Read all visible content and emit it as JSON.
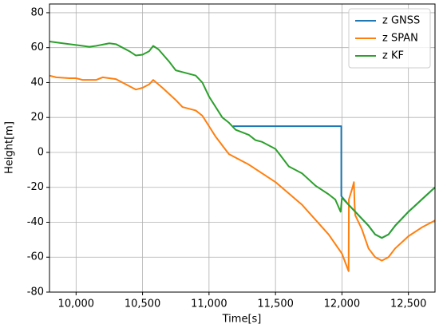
{
  "chart_data": {
    "type": "line",
    "x_label": "Time[s]",
    "y_label": "Height[m]",
    "xlim": [
      9800,
      12700
    ],
    "ylim": [
      -80,
      85
    ],
    "xticks": [
      {
        "value": 10000,
        "label": "10,000"
      },
      {
        "value": 10500,
        "label": "10,500"
      },
      {
        "value": 11000,
        "label": "11,000"
      },
      {
        "value": 11500,
        "label": "11,500"
      },
      {
        "value": 12000,
        "label": "12,000"
      },
      {
        "value": 12500,
        "label": "12,500"
      }
    ],
    "yticks": [
      -80,
      -60,
      -40,
      -20,
      0,
      20,
      40,
      60,
      80
    ],
    "grid": true,
    "legend": "upper right",
    "series": [
      {
        "name": "z GNSS",
        "color": "#1f77b4",
        "x": [
          11180,
          11990,
          11995,
          11995,
          12050,
          12100,
          12200,
          12250,
          12300,
          12350,
          12400,
          12500,
          12600,
          12700
        ],
        "values": [
          15,
          15,
          15,
          -25,
          -30,
          -34,
          -42,
          -47,
          -49,
          -47,
          -42,
          -34,
          -27,
          -20
        ]
      },
      {
        "name": "z SPAN",
        "color": "#ff7f0e",
        "x": [
          9800,
          9850,
          9950,
          10000,
          10050,
          10150,
          10200,
          10300,
          10400,
          10450,
          10500,
          10550,
          10580,
          10650,
          10750,
          10800,
          10900,
          10950,
          11000,
          11050,
          11100,
          11150,
          11300,
          11500,
          11700,
          11900,
          12000,
          12050,
          12052,
          12080,
          12090,
          12095,
          12100,
          12150,
          12200,
          12250,
          12300,
          12350,
          12400,
          12500,
          12600,
          12700
        ],
        "values": [
          44,
          43,
          42.5,
          42.5,
          41.5,
          41.5,
          43,
          42,
          38,
          36,
          37,
          39,
          41.5,
          37,
          30,
          26,
          24,
          21,
          15,
          9,
          4,
          -1,
          -7,
          -17,
          -30,
          -47,
          -58,
          -68,
          -27,
          -20,
          -17,
          -30,
          -36,
          -44,
          -55,
          -60,
          -62,
          -60,
          -55,
          -48,
          -43,
          -39
        ]
      },
      {
        "name": "z KF",
        "color": "#2ca02c",
        "x": [
          9800,
          9900,
          10000,
          10100,
          10150,
          10250,
          10300,
          10400,
          10450,
          10500,
          10550,
          10580,
          10620,
          10700,
          10750,
          10800,
          10900,
          10950,
          11000,
          11050,
          11100,
          11150,
          11200,
          11300,
          11350,
          11400,
          11500,
          11550,
          11600,
          11700,
          11800,
          11900,
          11950,
          11990,
          12000,
          12050,
          12100,
          12200,
          12250,
          12300,
          12350,
          12400,
          12500,
          12600,
          12700
        ],
        "values": [
          63.5,
          62.5,
          61.5,
          60.5,
          61,
          62.5,
          62,
          58,
          55.5,
          56,
          58,
          61,
          59,
          52,
          47,
          46,
          44,
          40,
          32,
          26,
          20,
          17,
          13,
          10,
          7,
          6,
          2,
          -3,
          -8,
          -12,
          -19,
          -24,
          -27,
          -34,
          -26,
          -30,
          -34,
          -42,
          -47,
          -49,
          -47,
          -42,
          -34,
          -27,
          -20
        ]
      }
    ]
  }
}
